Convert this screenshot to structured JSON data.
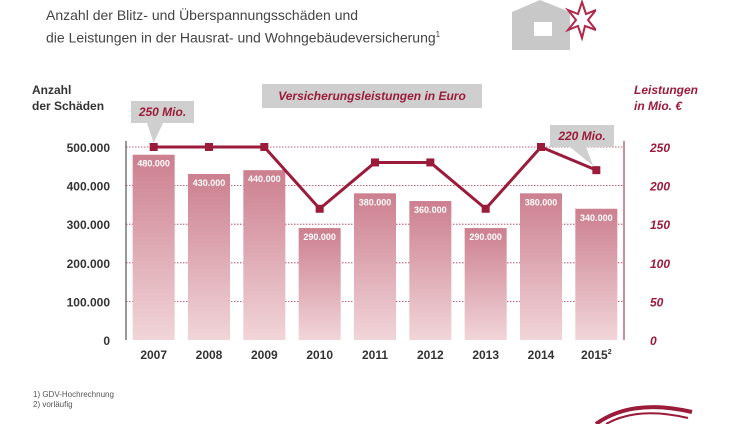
{
  "title_line1": "Anzahl der Blitz- und Überspannungsschäden und",
  "title_line2": "die Leistungen in der Hausrat- und Wohngebäudeversicherung",
  "title_note": "1",
  "left_axis_title_1": "Anzahl",
  "left_axis_title_2": "der Schäden",
  "right_axis_title_1": "Leistungen",
  "right_axis_title_2": "in Mio. €",
  "banner": "Versicherungsleistungen in Euro",
  "callout_first": "250 Mio.",
  "callout_last": "220 Mio.",
  "footnote_1": "1) GDV-Hochrechnung",
  "footnote_2": "2) vorläufig",
  "colors": {
    "bar_top": "#cc7f8f",
    "bar_bottom": "#f1d5d9",
    "line": "#9b1b3b",
    "grid": "#b0354f"
  },
  "chart_data": {
    "type": "bar",
    "categories": [
      "2007",
      "2008",
      "2009",
      "2010",
      "2011",
      "2012",
      "2013",
      "2014",
      "2015"
    ],
    "category_notes": [
      "",
      "",
      "",
      "",
      "",
      "",
      "",
      "",
      "2"
    ],
    "series": [
      {
        "values": [
          480000,
          430000,
          440000,
          290000,
          380000,
          360000,
          290000,
          380000,
          340000
        ],
        "labels": [
          "480.000",
          "430.000",
          "440.000",
          "290.000",
          "380.000",
          "360.000",
          "290.000",
          "380.000",
          "340.000"
        ]
      },
      {
        "type": "line",
        "axis": "right",
        "values": [
          250,
          250,
          250,
          170,
          230,
          230,
          170,
          250,
          220
        ]
      }
    ],
    "left_axis": {
      "ylim": [
        0,
        500000
      ],
      "ticks": [
        "0",
        "100.000",
        "200.000",
        "300.000",
        "400.000",
        "500.000"
      ]
    },
    "right_axis": {
      "ylim": [
        0,
        250
      ],
      "ticks": [
        "0",
        "50",
        "100",
        "150",
        "200",
        "250"
      ]
    },
    "grid": true
  }
}
